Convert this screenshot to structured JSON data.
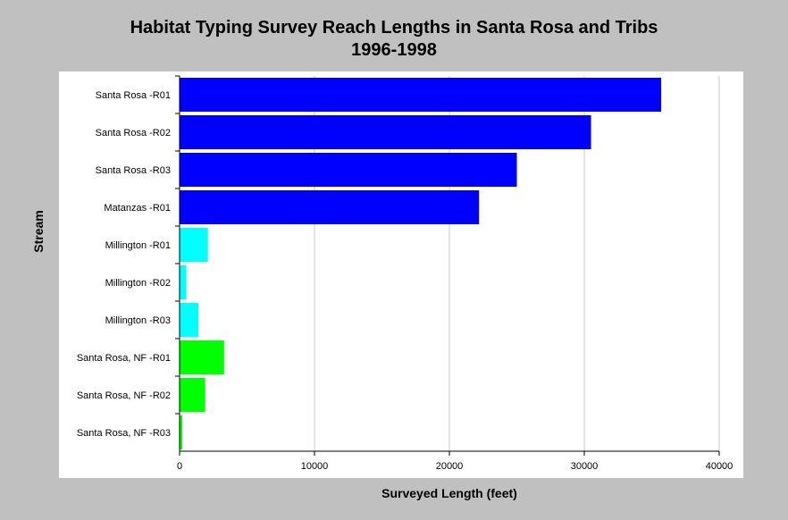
{
  "chart_data": {
    "type": "bar",
    "orientation": "horizontal",
    "title": "Habitat Typing Survey Reach Lengths in Santa Rosa and Tribs",
    "subtitle": "1996-1998",
    "xlabel": "Surveyed Length (feet)",
    "ylabel": "Stream",
    "xlim": [
      0,
      40000
    ],
    "xticks": [
      "0",
      "10000",
      "20000",
      "30000",
      "40000"
    ],
    "grid": true,
    "categories": [
      "Santa Rosa -R01",
      "Santa Rosa -R02",
      "Santa Rosa -R03",
      "Matanzas -R01",
      "Millington -R01",
      "Millington -R02",
      "Millington -R03",
      "Santa Rosa, NF -R01",
      "Santa Rosa, NF -R02",
      "Santa Rosa, NF -R03"
    ],
    "values": [
      35700,
      30500,
      25000,
      22200,
      2100,
      500,
      1400,
      3300,
      1900,
      200
    ],
    "colors": [
      "#0000ff",
      "#0000ff",
      "#0000ff",
      "#0000ff",
      "#00ffff",
      "#00ffff",
      "#00ffff",
      "#00ff00",
      "#00ff00",
      "#00ff00"
    ]
  }
}
